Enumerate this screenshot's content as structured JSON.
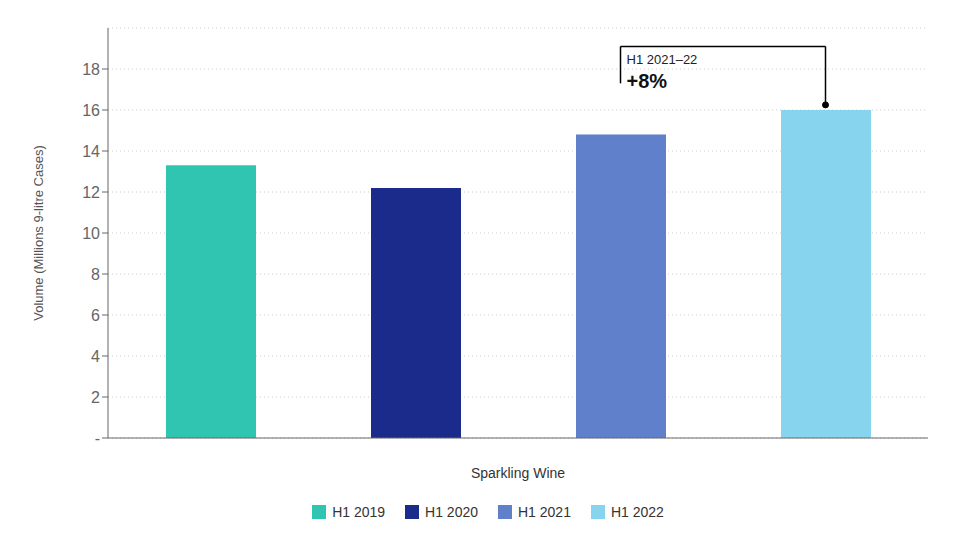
{
  "chart_data": {
    "type": "bar",
    "categories": [
      "H1 2019",
      "H1 2020",
      "H1 2021",
      "H1 2022"
    ],
    "values": [
      13.3,
      12.2,
      14.8,
      16.0
    ],
    "colors": [
      "#2fc5b0",
      "#1a2b8c",
      "#6080cc",
      "#87d4ef"
    ],
    "xlabel": "Sparkling Wine",
    "ylabel": "Volume (Millions 9-litre Cases)",
    "ylim": [
      0,
      20
    ],
    "yticks": [
      {
        "value": 0,
        "label": "-"
      },
      2,
      4,
      6,
      8,
      10,
      12,
      14,
      16,
      18
    ],
    "grid": true,
    "tick_labels": "y",
    "legend": "bottom",
    "annotations": [
      "H1 2021–22",
      "+8%"
    ]
  }
}
